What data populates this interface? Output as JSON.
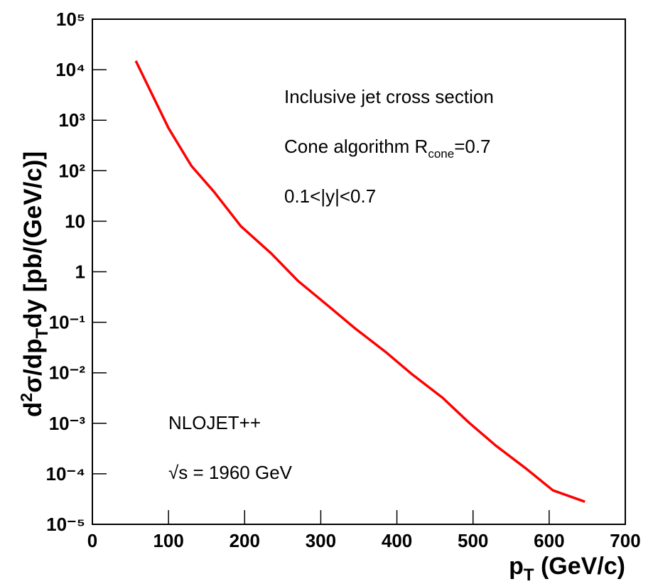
{
  "chart_data": {
    "type": "line",
    "xlabel": [
      "p",
      "T",
      " (GeV/c)"
    ],
    "ylabel": [
      "d",
      "2",
      "σ/dp",
      "T",
      "dy [pb/(GeV/c)]"
    ],
    "annotations": {
      "process": "Inclusive jet cross section",
      "algorithm": [
        "Cone algorithm R",
        "cone",
        "=0.7"
      ],
      "rapidity": "0.1<|y|<0.7",
      "program": "NLOJET++",
      "energy": "√s = 1960 GeV"
    },
    "x": [
      57,
      100,
      130,
      160,
      195,
      235,
      270,
      310,
      345,
      385,
      420,
      460,
      495,
      530,
      570,
      605,
      647
    ],
    "series": [
      {
        "color": "#ff0000",
        "values": [
          15000,
          700,
          125,
          38,
          8,
          2.3,
          0.66,
          0.21,
          0.076,
          0.026,
          0.0093,
          0.0032,
          0.00102,
          0.00036,
          0.000126,
          4.7e-05,
          2.8e-05
        ]
      }
    ],
    "xlim": [
      0,
      700
    ],
    "xticks": [
      0,
      100,
      200,
      300,
      400,
      500,
      600,
      700
    ],
    "ylim": [
      1e-05,
      100000
    ],
    "ylog": true,
    "yticks": [
      {
        "value": 100000,
        "label": "10⁵"
      },
      {
        "value": 10000,
        "label": "10⁴"
      },
      {
        "value": 1000,
        "label": "10³"
      },
      {
        "value": 100,
        "label": "10²"
      },
      10,
      1,
      {
        "value": 0.1,
        "label": "10⁻¹"
      },
      {
        "value": 0.01,
        "label": "10⁻²"
      },
      {
        "value": 0.001,
        "label": "10⁻³"
      },
      {
        "value": 0.0001,
        "label": "10⁻⁴"
      },
      {
        "value": 1e-05,
        "label": "10⁻⁵"
      }
    ]
  }
}
